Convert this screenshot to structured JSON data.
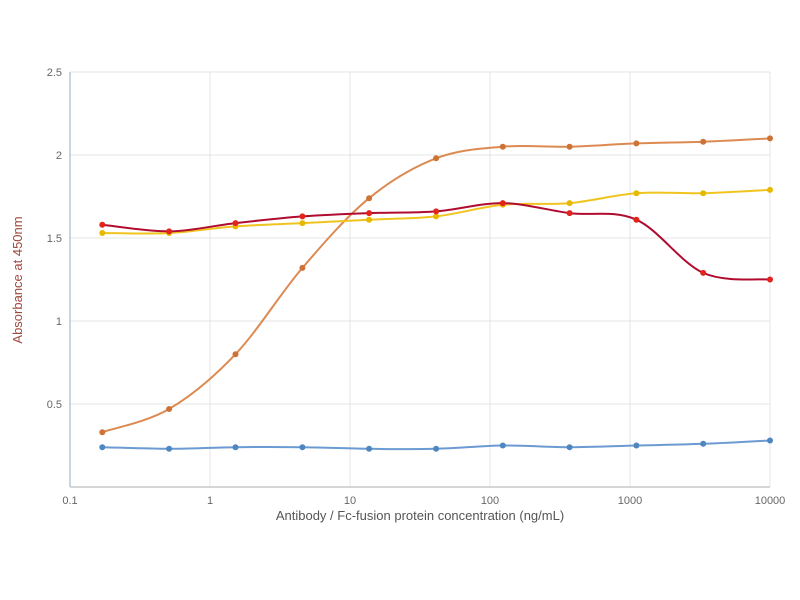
{
  "chart_data": {
    "type": "line",
    "title": "",
    "xlabel": "Antibody / Fc-fusion protein concentration (ng/mL)",
    "ylabel": "Absorbance at 450nm",
    "xscale": "log",
    "xlim": [
      0.1,
      10000
    ],
    "ylim": [
      0,
      2.5
    ],
    "xticks": [
      0.1,
      1,
      10,
      100,
      1000,
      10000
    ],
    "xtick_labels": [
      "0.1",
      "1",
      "10",
      "100",
      "1000",
      "10000"
    ],
    "yticks": [
      0.5,
      1,
      1.5,
      2,
      2.5
    ],
    "ytick_labels": [
      "0.5",
      "1",
      "1.5",
      "2",
      "2.5"
    ],
    "grid": true,
    "legend": "none",
    "x": [
      0.17,
      0.51,
      1.52,
      4.57,
      13.7,
      41.2,
      123.5,
      370.4,
      1111,
      3333,
      10000
    ],
    "series": [
      {
        "name": "orange-sigmoid-series",
        "line_color": "#dd8a52",
        "marker_color": "#cf7236",
        "values": [
          0.33,
          0.47,
          0.8,
          1.32,
          1.74,
          1.98,
          2.05,
          2.05,
          2.07,
          2.08,
          2.1
        ]
      },
      {
        "name": "yellow-series",
        "line_color": "#f0c420",
        "marker_color": "#e6b800",
        "values": [
          1.53,
          1.53,
          1.57,
          1.59,
          1.61,
          1.63,
          1.7,
          1.71,
          1.77,
          1.77,
          1.79
        ]
      },
      {
        "name": "red-series",
        "line_color": "#b00c2f",
        "marker_color": "#e3241d",
        "values": [
          1.58,
          1.54,
          1.59,
          1.63,
          1.65,
          1.66,
          1.71,
          1.65,
          1.61,
          1.29,
          1.25
        ]
      },
      {
        "name": "blue-series",
        "line_color": "#6b9bd2",
        "marker_color": "#4f86c0",
        "values": [
          0.24,
          0.23,
          0.24,
          0.24,
          0.23,
          0.23,
          0.25,
          0.24,
          0.25,
          0.26,
          0.28
        ]
      }
    ],
    "style": {
      "ylabel_color": "#9c4a3c",
      "xlabel_color": "#555555",
      "tick_color": "#666666",
      "grid_color": "#e4e4e4",
      "spine_left_color": "#b9c6d8",
      "spine_bottom_color": "#c9c9c9",
      "background": "#ffffff",
      "line_width": 2,
      "marker_radius": 3
    }
  }
}
